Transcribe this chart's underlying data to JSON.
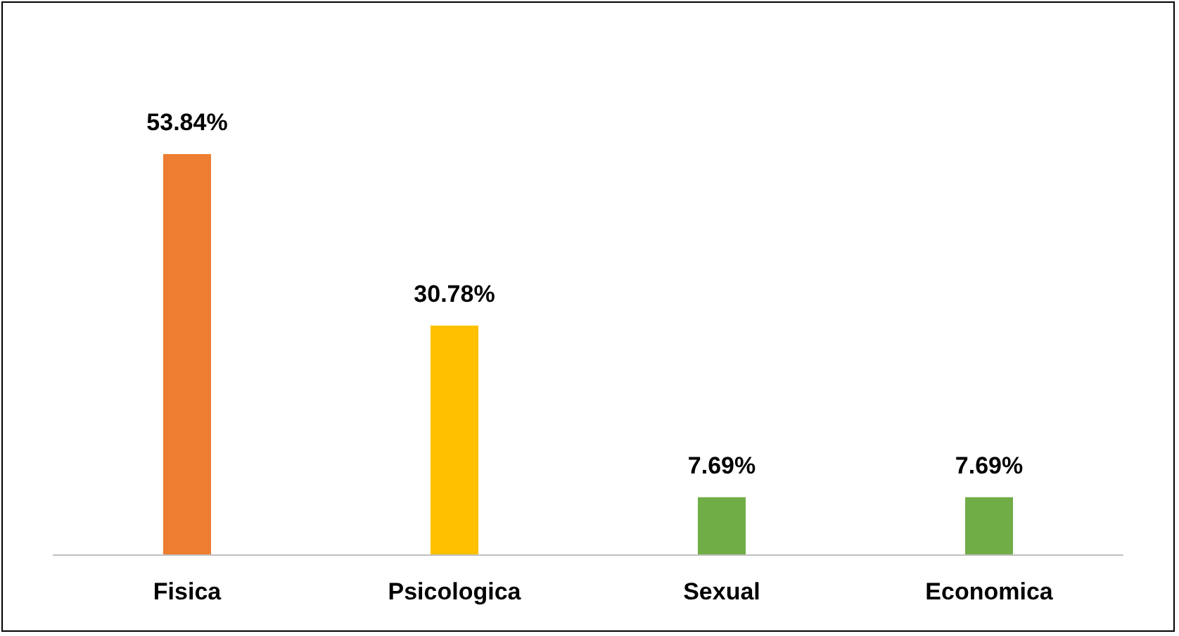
{
  "chart_data": {
    "type": "bar",
    "categories": [
      "Fisica",
      "Psicologica",
      "Sexual",
      "Economica"
    ],
    "values": [
      53.84,
      30.78,
      7.69,
      7.69
    ],
    "colors": [
      "#ed7d31",
      "#ffc000",
      "#70ad47",
      "#70ad47"
    ],
    "value_labels": [
      "53.84%",
      "30.78%",
      "7.69%",
      "7.69%"
    ]
  }
}
